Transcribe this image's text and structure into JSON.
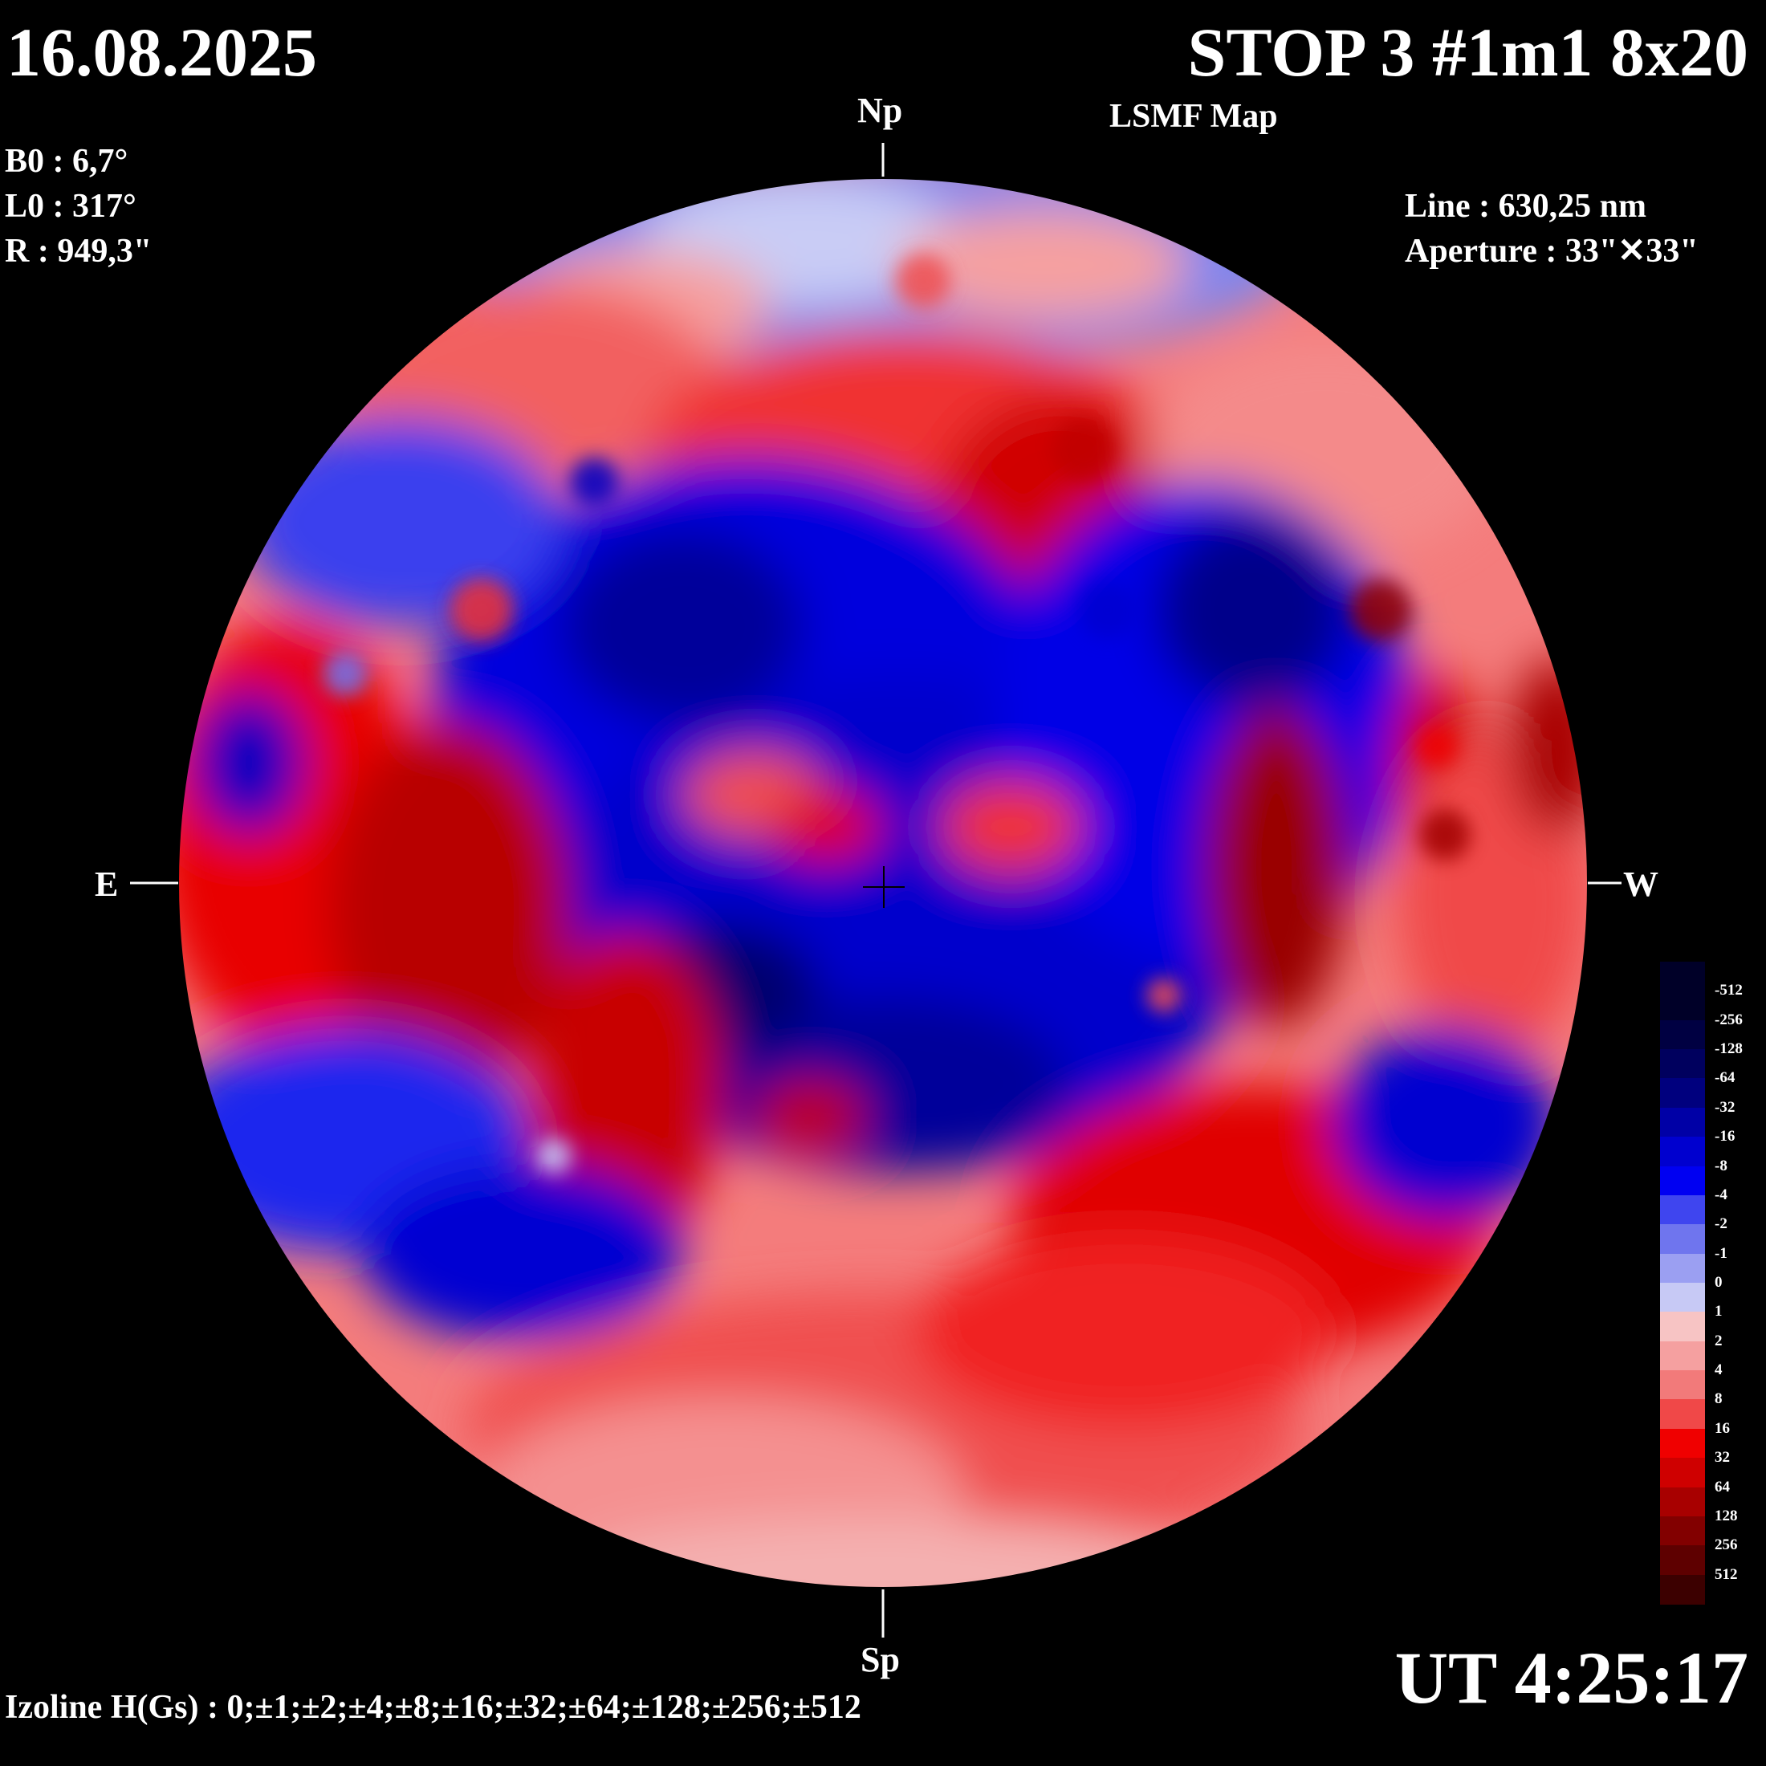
{
  "header": {
    "date": "16.08.2025",
    "station": "STOP 3 #1m1 8x20",
    "map_type": "LSMF  Map"
  },
  "parameters": {
    "b0": "B0 : 6,7°",
    "l0": "L0 : 317°",
    "radius": "R  : 949,3\""
  },
  "instrument": {
    "line": "Line :  630,25 nm",
    "aperture": "Aperture : 33\"✕33\""
  },
  "directions": {
    "north": "Np",
    "south": "Sp",
    "east": "E",
    "west": "W"
  },
  "footer": {
    "ut": "UT 4:25:17",
    "izoline": "Izoline H(Gs) : 0;±1;±2;±4;±8;±16;±32;±64;±128;±256;±512"
  },
  "colorbar": {
    "levels": [
      {
        "label": "-512",
        "color": "#000028"
      },
      {
        "label": "-256",
        "color": "#000042"
      },
      {
        "label": "-128",
        "color": "#00005e"
      },
      {
        "label": "-64",
        "color": "#00007e"
      },
      {
        "label": "-32",
        "color": "#0000a6"
      },
      {
        "label": "-16",
        "color": "#0000cf"
      },
      {
        "label": "-8",
        "color": "#0000f2"
      },
      {
        "label": "-4",
        "color": "#3f45ef"
      },
      {
        "label": "-2",
        "color": "#6f75ee"
      },
      {
        "label": "-1",
        "color": "#9b9ff2"
      },
      {
        "label": "0",
        "color": "#c7c9f5"
      },
      {
        "label": "1",
        "color": "#f7c4c4"
      },
      {
        "label": "2",
        "color": "#f5a0a0"
      },
      {
        "label": "4",
        "color": "#f27a7a"
      },
      {
        "label": "8",
        "color": "#f04848"
      },
      {
        "label": "16",
        "color": "#f00000"
      },
      {
        "label": "32",
        "color": "#cf0000"
      },
      {
        "label": "64",
        "color": "#a80000"
      },
      {
        "label": "128",
        "color": "#820000"
      },
      {
        "label": "256",
        "color": "#5e0000"
      },
      {
        "label": "512",
        "color": "#3c0000"
      }
    ]
  }
}
